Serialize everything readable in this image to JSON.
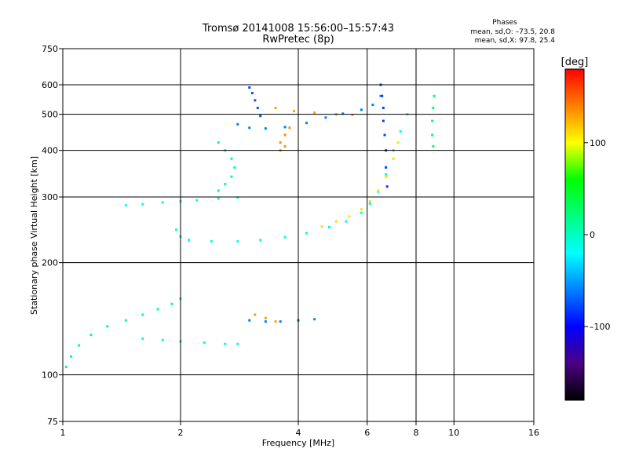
{
  "chart_data": {
    "type": "scatter",
    "title": "Tromsø 20141008 15:56:00–15:57:43",
    "subtitle": "RwPretec (8p)",
    "xlabel": "Frequency [MHz]",
    "ylabel": "Stationary phase Virtual Height [km]",
    "x_scale": "log",
    "y_scale": "log",
    "xlim": [
      1,
      16
    ],
    "ylim": [
      75,
      750
    ],
    "x_ticks": [
      "1",
      "2",
      "4",
      "6",
      "8",
      "10",
      "16"
    ],
    "x_tick_values": [
      1,
      2,
      4,
      6,
      8,
      10,
      16
    ],
    "y_ticks": [
      "750",
      "600",
      "500",
      "400",
      "300",
      "200",
      "100",
      "75"
    ],
    "y_tick_values": [
      750,
      600,
      500,
      400,
      300,
      200,
      100,
      75
    ],
    "grid": true,
    "stats": {
      "title": "Phases",
      "line_o": "mean, sd,O: –73.5, 20.8",
      "line_x": "mean, sd,X:  97.8, 25.4"
    },
    "colorbar": {
      "label": "[deg]",
      "ticks": [
        "100",
        "0",
        "–100"
      ],
      "tick_values": [
        100,
        0,
        -100
      ],
      "range": [
        -180,
        180
      ],
      "colors": [
        "#000000",
        "#4b0082",
        "#0000ff",
        "#0080ff",
        "#00ffff",
        "#00ff80",
        "#00ff00",
        "#ffff00",
        "#ff8000",
        "#ff0000"
      ]
    },
    "traces": [
      {
        "name": "",
        "points": [
          [
            1.02,
            105
          ],
          [
            1.05,
            112
          ],
          [
            1.1,
            120
          ],
          [
            1.18,
            128
          ],
          [
            1.3,
            135
          ],
          [
            1.45,
            140
          ],
          [
            1.6,
            145
          ],
          [
            1.75,
            150
          ],
          [
            1.9,
            155
          ],
          [
            2.0,
            160
          ]
        ],
        "phase": 10
      },
      {
        "name": "",
        "points": [
          [
            1.6,
            125
          ],
          [
            1.8,
            124
          ],
          [
            2.0,
            123
          ],
          [
            2.3,
            122
          ],
          [
            2.6,
            121
          ],
          [
            2.8,
            121
          ]
        ],
        "phase": -10
      },
      {
        "name": "",
        "points": [
          [
            1.45,
            285
          ],
          [
            1.6,
            287
          ],
          [
            1.8,
            290
          ],
          [
            2.0,
            292
          ],
          [
            2.2,
            294
          ],
          [
            2.5,
            297
          ],
          [
            2.8,
            299
          ]
        ],
        "phase": -20
      },
      {
        "name": "",
        "points": [
          [
            1.95,
            245
          ],
          [
            2.0,
            235
          ],
          [
            2.1,
            230
          ],
          [
            2.4,
            228
          ],
          [
            2.8,
            228
          ],
          [
            3.2,
            230
          ],
          [
            3.7,
            234
          ],
          [
            4.2,
            240
          ],
          [
            4.8,
            249
          ],
          [
            5.3,
            258
          ],
          [
            5.8,
            272
          ],
          [
            6.1,
            288
          ],
          [
            6.4,
            310
          ],
          [
            6.7,
            345
          ],
          [
            7.0,
            400
          ],
          [
            7.3,
            450
          ],
          [
            7.6,
            500
          ]
        ],
        "phase": -15
      },
      {
        "name": "",
        "points": [
          [
            4.6,
            250
          ],
          [
            5.0,
            258
          ],
          [
            5.4,
            266
          ],
          [
            5.8,
            278
          ],
          [
            6.1,
            292
          ],
          [
            6.4,
            312
          ],
          [
            6.7,
            340
          ],
          [
            7.0,
            380
          ],
          [
            7.2,
            420
          ]
        ],
        "phase": 110
      },
      {
        "name": "",
        "points": [
          [
            2.8,
            470
          ],
          [
            3.0,
            460
          ],
          [
            3.3,
            458
          ],
          [
            3.7,
            462
          ],
          [
            4.2,
            474
          ],
          [
            4.7,
            490
          ],
          [
            5.2,
            502
          ],
          [
            5.8,
            514
          ],
          [
            6.2,
            530
          ],
          [
            6.5,
            560
          ]
        ],
        "phase": -60
      },
      {
        "name": "",
        "points": [
          [
            3.5,
            520
          ],
          [
            3.9,
            510
          ],
          [
            4.4,
            505
          ],
          [
            5.0,
            500
          ],
          [
            5.5,
            498
          ]
        ],
        "phase": 130
      },
      {
        "name": "",
        "points": [
          [
            2.5,
            420
          ],
          [
            2.6,
            400
          ],
          [
            2.7,
            380
          ],
          [
            2.75,
            360
          ],
          [
            2.7,
            340
          ],
          [
            2.6,
            325
          ],
          [
            2.5,
            312
          ]
        ],
        "phase": 10
      },
      {
        "name": "",
        "points": [
          [
            3.0,
            590
          ],
          [
            3.05,
            570
          ],
          [
            3.1,
            545
          ],
          [
            3.15,
            520
          ],
          [
            3.2,
            495
          ]
        ],
        "phase": -75
      },
      {
        "name": "",
        "points": [
          [
            6.5,
            600
          ],
          [
            6.55,
            560
          ],
          [
            6.6,
            520
          ],
          [
            6.6,
            480
          ],
          [
            6.65,
            440
          ],
          [
            6.7,
            400
          ],
          [
            6.7,
            360
          ],
          [
            6.75,
            320
          ]
        ],
        "phase": -80
      },
      {
        "name": "",
        "points": [
          [
            8.9,
            560
          ],
          [
            8.85,
            520
          ],
          [
            8.8,
            480
          ],
          [
            8.8,
            440
          ],
          [
            8.85,
            410
          ]
        ],
        "phase": 30
      },
      {
        "name": "",
        "points": [
          [
            3.0,
            140
          ],
          [
            3.3,
            139
          ],
          [
            3.6,
            139
          ],
          [
            4.0,
            140
          ],
          [
            4.4,
            141
          ]
        ],
        "phase": -60
      },
      {
        "name": "",
        "points": [
          [
            3.1,
            145
          ],
          [
            3.3,
            142
          ],
          [
            3.5,
            139
          ]
        ],
        "phase": 130
      },
      {
        "name": "",
        "points": [
          [
            3.6,
            420
          ],
          [
            3.7,
            440
          ],
          [
            3.8,
            460
          ],
          [
            3.6,
            400
          ],
          [
            3.7,
            410
          ]
        ],
        "phase": 135
      }
    ]
  }
}
